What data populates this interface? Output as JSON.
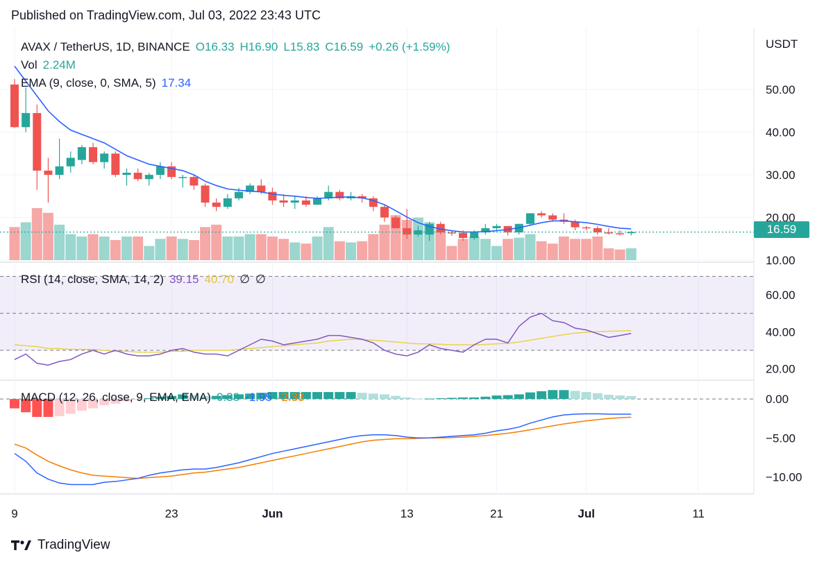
{
  "header": {
    "published": "Published on TradingView.com, Jul 03, 2022 23:43 UTC"
  },
  "legend": {
    "symbol": "AVAX / TetherUS, 1D, BINANCE",
    "ohlc": {
      "o": "O16.33",
      "h": "H16.90",
      "l": "L15.83",
      "c": "C16.59",
      "change": "+0.26 (+1.59%)"
    },
    "vol_label": "Vol",
    "vol_value": "2.24M",
    "ema_label": "EMA (9, close, 0, SMA, 5)",
    "ema_value": "17.34",
    "rsi_label": "RSI (14, close, SMA, 14, 2)",
    "rsi_value": "39.15",
    "rsi_sma_value": "40.70",
    "rsi_na1": "∅",
    "rsi_na2": "∅",
    "macd_label": "MACD (12, 26, close, 9, EMA, EMA)",
    "macd_hist_value": "0.38",
    "macd_value": "-1.95",
    "macd_signal_value": "-2.33"
  },
  "axis": {
    "unit": "USDT",
    "price_tag": "16.59"
  },
  "brand": {
    "name": "TradingView"
  },
  "colors": {
    "up": "#26a69a",
    "down": "#ef5350",
    "ema": "#2962ff",
    "rsi": "#7e57c2",
    "rsi_sma": "#e9d24a",
    "macd": "#2962ff",
    "signal": "#f57c00"
  },
  "chart_data": [
    {
      "type": "candlestick",
      "title": "AVAX / TetherUS, 1D, BINANCE",
      "ylim": [
        10,
        58
      ],
      "y_ticks": [
        "10.00",
        "20.00",
        "30.00",
        "40.00",
        "50.00"
      ],
      "x_ticks": [
        "9",
        "23",
        "Jun",
        "13",
        "21",
        "Jul",
        "11"
      ],
      "x_tick_index": [
        0,
        14,
        23,
        35,
        43,
        51,
        61
      ],
      "candles": [
        [
          51.2,
          52.5,
          41,
          41.2
        ],
        [
          41.2,
          50.5,
          40,
          44.5
        ],
        [
          44.5,
          46.5,
          26.5,
          31
        ],
        [
          31,
          34,
          23.5,
          30
        ],
        [
          30,
          38.5,
          29,
          32
        ],
        [
          32,
          35.5,
          30.5,
          34
        ],
        [
          33.5,
          37,
          32.5,
          36.5
        ],
        [
          36.5,
          37.5,
          32.5,
          33
        ],
        [
          33,
          35.5,
          31.5,
          35
        ],
        [
          35,
          35.5,
          29.5,
          30
        ],
        [
          30,
          31.5,
          27.5,
          30.5
        ],
        [
          30.5,
          31.5,
          28.5,
          29
        ],
        [
          29,
          30.5,
          27.5,
          30
        ],
        [
          30,
          33,
          29,
          32
        ],
        [
          32,
          33,
          29,
          29.5
        ],
        [
          29.5,
          30,
          27,
          29.5
        ],
        [
          29.5,
          30,
          26.5,
          27.5
        ],
        [
          27.5,
          28,
          22.5,
          23.5
        ],
        [
          23.5,
          24.5,
          21.5,
          22.5
        ],
        [
          22.5,
          25.5,
          22,
          24.5
        ],
        [
          24.5,
          27,
          24,
          26
        ],
        [
          26,
          28,
          25.5,
          27.5
        ],
        [
          27.5,
          29,
          25.5,
          26
        ],
        [
          26,
          27,
          23,
          24
        ],
        [
          24,
          25.5,
          22.5,
          23.5
        ],
        [
          23.5,
          25,
          22,
          24
        ],
        [
          24,
          25,
          22.5,
          23
        ],
        [
          23,
          25,
          23,
          24.5
        ],
        [
          24.5,
          27.5,
          24,
          26
        ],
        [
          26,
          26.5,
          24,
          24.5
        ],
        [
          24.5,
          26,
          24,
          25
        ],
        [
          25,
          25.5,
          23.5,
          24.5
        ],
        [
          24.5,
          25,
          21.5,
          22.5
        ],
        [
          22.5,
          23,
          19,
          20
        ],
        [
          20,
          20.5,
          17.5,
          17.5
        ],
        [
          17.5,
          22,
          15,
          16
        ],
        [
          16,
          18,
          15.5,
          17
        ],
        [
          16,
          19,
          14.5,
          18.5
        ],
        [
          18.5,
          19,
          16,
          16.5
        ],
        [
          16.5,
          17,
          15.7,
          16.4
        ],
        [
          16.4,
          17,
          14.5,
          15.2
        ],
        [
          15.2,
          17,
          14.8,
          16.5
        ],
        [
          16.5,
          18.5,
          16,
          17.5
        ],
        [
          17.5,
          18.5,
          17,
          18
        ],
        [
          18,
          18,
          15.8,
          16.5
        ],
        [
          16.5,
          18.5,
          16,
          18.5
        ],
        [
          18.5,
          21,
          18,
          21
        ],
        [
          21,
          21.5,
          20,
          20.5
        ],
        [
          20.5,
          21,
          19,
          19.5
        ],
        [
          19.5,
          21,
          18.5,
          19
        ],
        [
          19,
          19.5,
          17,
          17.7
        ],
        [
          17.7,
          18,
          17,
          17.5
        ],
        [
          17.5,
          18,
          16,
          16.5
        ],
        [
          16.5,
          17.5,
          16,
          16.3
        ],
        [
          16.3,
          17,
          15.8,
          16.2
        ],
        [
          16.33,
          16.9,
          15.83,
          16.59
        ]
      ],
      "ema": [
        55.5,
        52,
        48.5,
        45,
        42.5,
        40.5,
        39.5,
        38.5,
        37.5,
        36,
        34.5,
        33.5,
        32.5,
        32,
        31.5,
        31,
        30,
        28.5,
        27.5,
        26.7,
        26.4,
        26.2,
        26,
        25.5,
        25.2,
        25,
        24.7,
        24.5,
        24.6,
        24.8,
        24.8,
        24.6,
        24,
        23,
        21.6,
        20.1,
        18.8,
        17.9,
        17.3,
        16.9,
        16.6,
        16.6,
        16.7,
        16.9,
        17.2,
        17.6,
        18.2,
        18.8,
        19.2,
        19.2,
        19,
        18.8,
        18.4,
        17.9,
        17.5,
        17.34
      ],
      "volume": [
        14,
        16,
        22,
        20,
        15,
        11,
        10,
        11,
        10,
        8.5,
        10,
        10,
        6,
        9,
        10,
        9,
        8.5,
        14,
        15,
        10,
        10,
        11,
        11,
        10,
        9,
        7.5,
        7,
        10,
        14,
        8,
        7.5,
        8,
        11,
        15,
        19,
        17,
        18,
        16,
        13,
        6,
        9,
        10,
        9,
        6,
        9,
        9.5,
        11,
        8,
        7,
        10,
        9,
        9,
        10,
        5,
        4.5,
        5
      ],
      "volume_max": 22
    },
    {
      "type": "line",
      "title": "RSI (14, close, SMA, 14, 2)",
      "ylim": [
        15,
        75
      ],
      "y_ticks": [
        "20.00",
        "40.00",
        "60.00"
      ],
      "bands": [
        30,
        50,
        70
      ],
      "series": [
        {
          "name": "RSI",
          "values": [
            25,
            28,
            23,
            22,
            24,
            25,
            28,
            30,
            28,
            30,
            28,
            27,
            27,
            28,
            30,
            31,
            29,
            28,
            28,
            27,
            30,
            33,
            36,
            35,
            33,
            34,
            35,
            36,
            38,
            38,
            37,
            36,
            34,
            30,
            28,
            27,
            29,
            33,
            31,
            30,
            29,
            33,
            36,
            36,
            34,
            43,
            48,
            50,
            46,
            45,
            42,
            41,
            39,
            37,
            38,
            39.15
          ]
        },
        {
          "name": "SMA",
          "values": [
            33,
            32.5,
            32,
            31,
            31,
            30.5,
            30.5,
            30.5,
            30,
            29.5,
            29.5,
            29,
            29,
            29,
            29.5,
            29.5,
            30,
            30,
            30,
            30,
            30.5,
            31,
            31.5,
            32,
            32.5,
            33,
            33.5,
            34,
            35,
            35.5,
            36,
            35.8,
            35.5,
            35,
            34.5,
            34,
            33.5,
            33.5,
            33.3,
            33,
            33,
            33,
            33.2,
            33.5,
            33.8,
            34.5,
            35.5,
            36.5,
            37.5,
            38.5,
            39.3,
            39.8,
            40.1,
            40.3,
            40.5,
            40.7
          ]
        }
      ]
    },
    {
      "type": "line",
      "title": "MACD (12, 26, close, 9, EMA, EMA)",
      "ylim": [
        -12.2,
        1.8
      ],
      "y_ticks": [
        "-10.00",
        "-5.00",
        "0.00"
      ],
      "series": [
        {
          "name": "MACD",
          "values": [
            -7,
            -8,
            -9.5,
            -10.3,
            -10.8,
            -11,
            -11,
            -11,
            -10.7,
            -10.6,
            -10.4,
            -10.2,
            -9.8,
            -9.5,
            -9.3,
            -9.1,
            -9,
            -9,
            -8.8,
            -8.5,
            -8.2,
            -7.8,
            -7.4,
            -7,
            -6.7,
            -6.4,
            -6.1,
            -5.8,
            -5.5,
            -5.2,
            -4.9,
            -4.7,
            -4.6,
            -4.6,
            -4.7,
            -4.9,
            -5,
            -5,
            -4.9,
            -4.8,
            -4.7,
            -4.6,
            -4.4,
            -4.1,
            -3.9,
            -3.6,
            -3.1,
            -2.7,
            -2.3,
            -2.05,
            -1.95,
            -1.9,
            -1.9,
            -1.95,
            -1.95,
            -1.95
          ]
        },
        {
          "name": "Signal",
          "values": [
            -5.8,
            -6.3,
            -7.2,
            -8,
            -8.6,
            -9.1,
            -9.5,
            -9.8,
            -9.9,
            -10,
            -10.1,
            -10.2,
            -10.1,
            -10,
            -9.9,
            -9.7,
            -9.5,
            -9.4,
            -9.2,
            -9,
            -8.8,
            -8.5,
            -8.2,
            -7.9,
            -7.6,
            -7.3,
            -7,
            -6.7,
            -6.4,
            -6.1,
            -5.8,
            -5.5,
            -5.3,
            -5.2,
            -5.1,
            -5.1,
            -5.05,
            -5,
            -5,
            -4.95,
            -4.9,
            -4.8,
            -4.7,
            -4.55,
            -4.4,
            -4.2,
            -3.95,
            -3.7,
            -3.45,
            -3.2,
            -3,
            -2.8,
            -2.65,
            -2.5,
            -2.4,
            -2.33
          ]
        },
        {
          "name": "Histogram",
          "values": [
            -1.2,
            -1.7,
            -2.3,
            -2.3,
            -2.2,
            -1.9,
            -1.5,
            -1.2,
            -0.8,
            -0.6,
            -0.3,
            -0.1,
            0.1,
            0.3,
            0.4,
            0.6,
            0.5,
            0.4,
            0.4,
            0.5,
            0.6,
            0.7,
            0.8,
            0.9,
            0.9,
            0.9,
            0.9,
            0.9,
            0.9,
            0.9,
            0.9,
            0.8,
            0.7,
            0.6,
            0.4,
            0.2,
            0.05,
            0.05,
            0.1,
            0.15,
            0.2,
            0.2,
            0.3,
            0.45,
            0.5,
            0.6,
            0.85,
            1.0,
            1.15,
            1.15,
            1.05,
            0.9,
            0.75,
            0.55,
            0.45,
            0.38
          ]
        }
      ]
    }
  ]
}
